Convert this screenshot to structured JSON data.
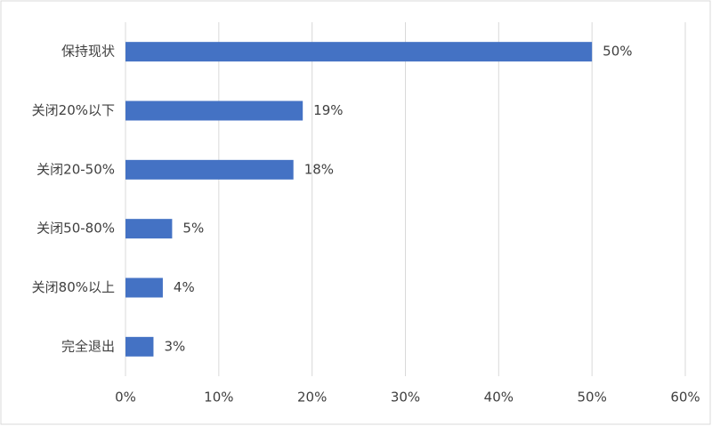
{
  "chart_data": {
    "type": "hbar",
    "categories": [
      "保持现状",
      "关闭20%以下",
      "关闭20-50%",
      "关闭50-80%",
      "关闭80%以上",
      "完全退出"
    ],
    "values": [
      50,
      19,
      18,
      5,
      4,
      3
    ],
    "value_labels": [
      "50%",
      "19%",
      "18%",
      "5%",
      "4%",
      "3%"
    ],
    "color": "#4472c4",
    "xlim": [
      0,
      60
    ],
    "xticks": [
      {
        "value": 0,
        "label": "0%"
      },
      {
        "value": 10,
        "label": "10%"
      },
      {
        "value": 20,
        "label": "20%"
      },
      {
        "value": 30,
        "label": "30%"
      },
      {
        "value": 40,
        "label": "40%"
      },
      {
        "value": 50,
        "label": "50%"
      },
      {
        "value": 60,
        "label": "60%"
      }
    ],
    "grid": true
  }
}
